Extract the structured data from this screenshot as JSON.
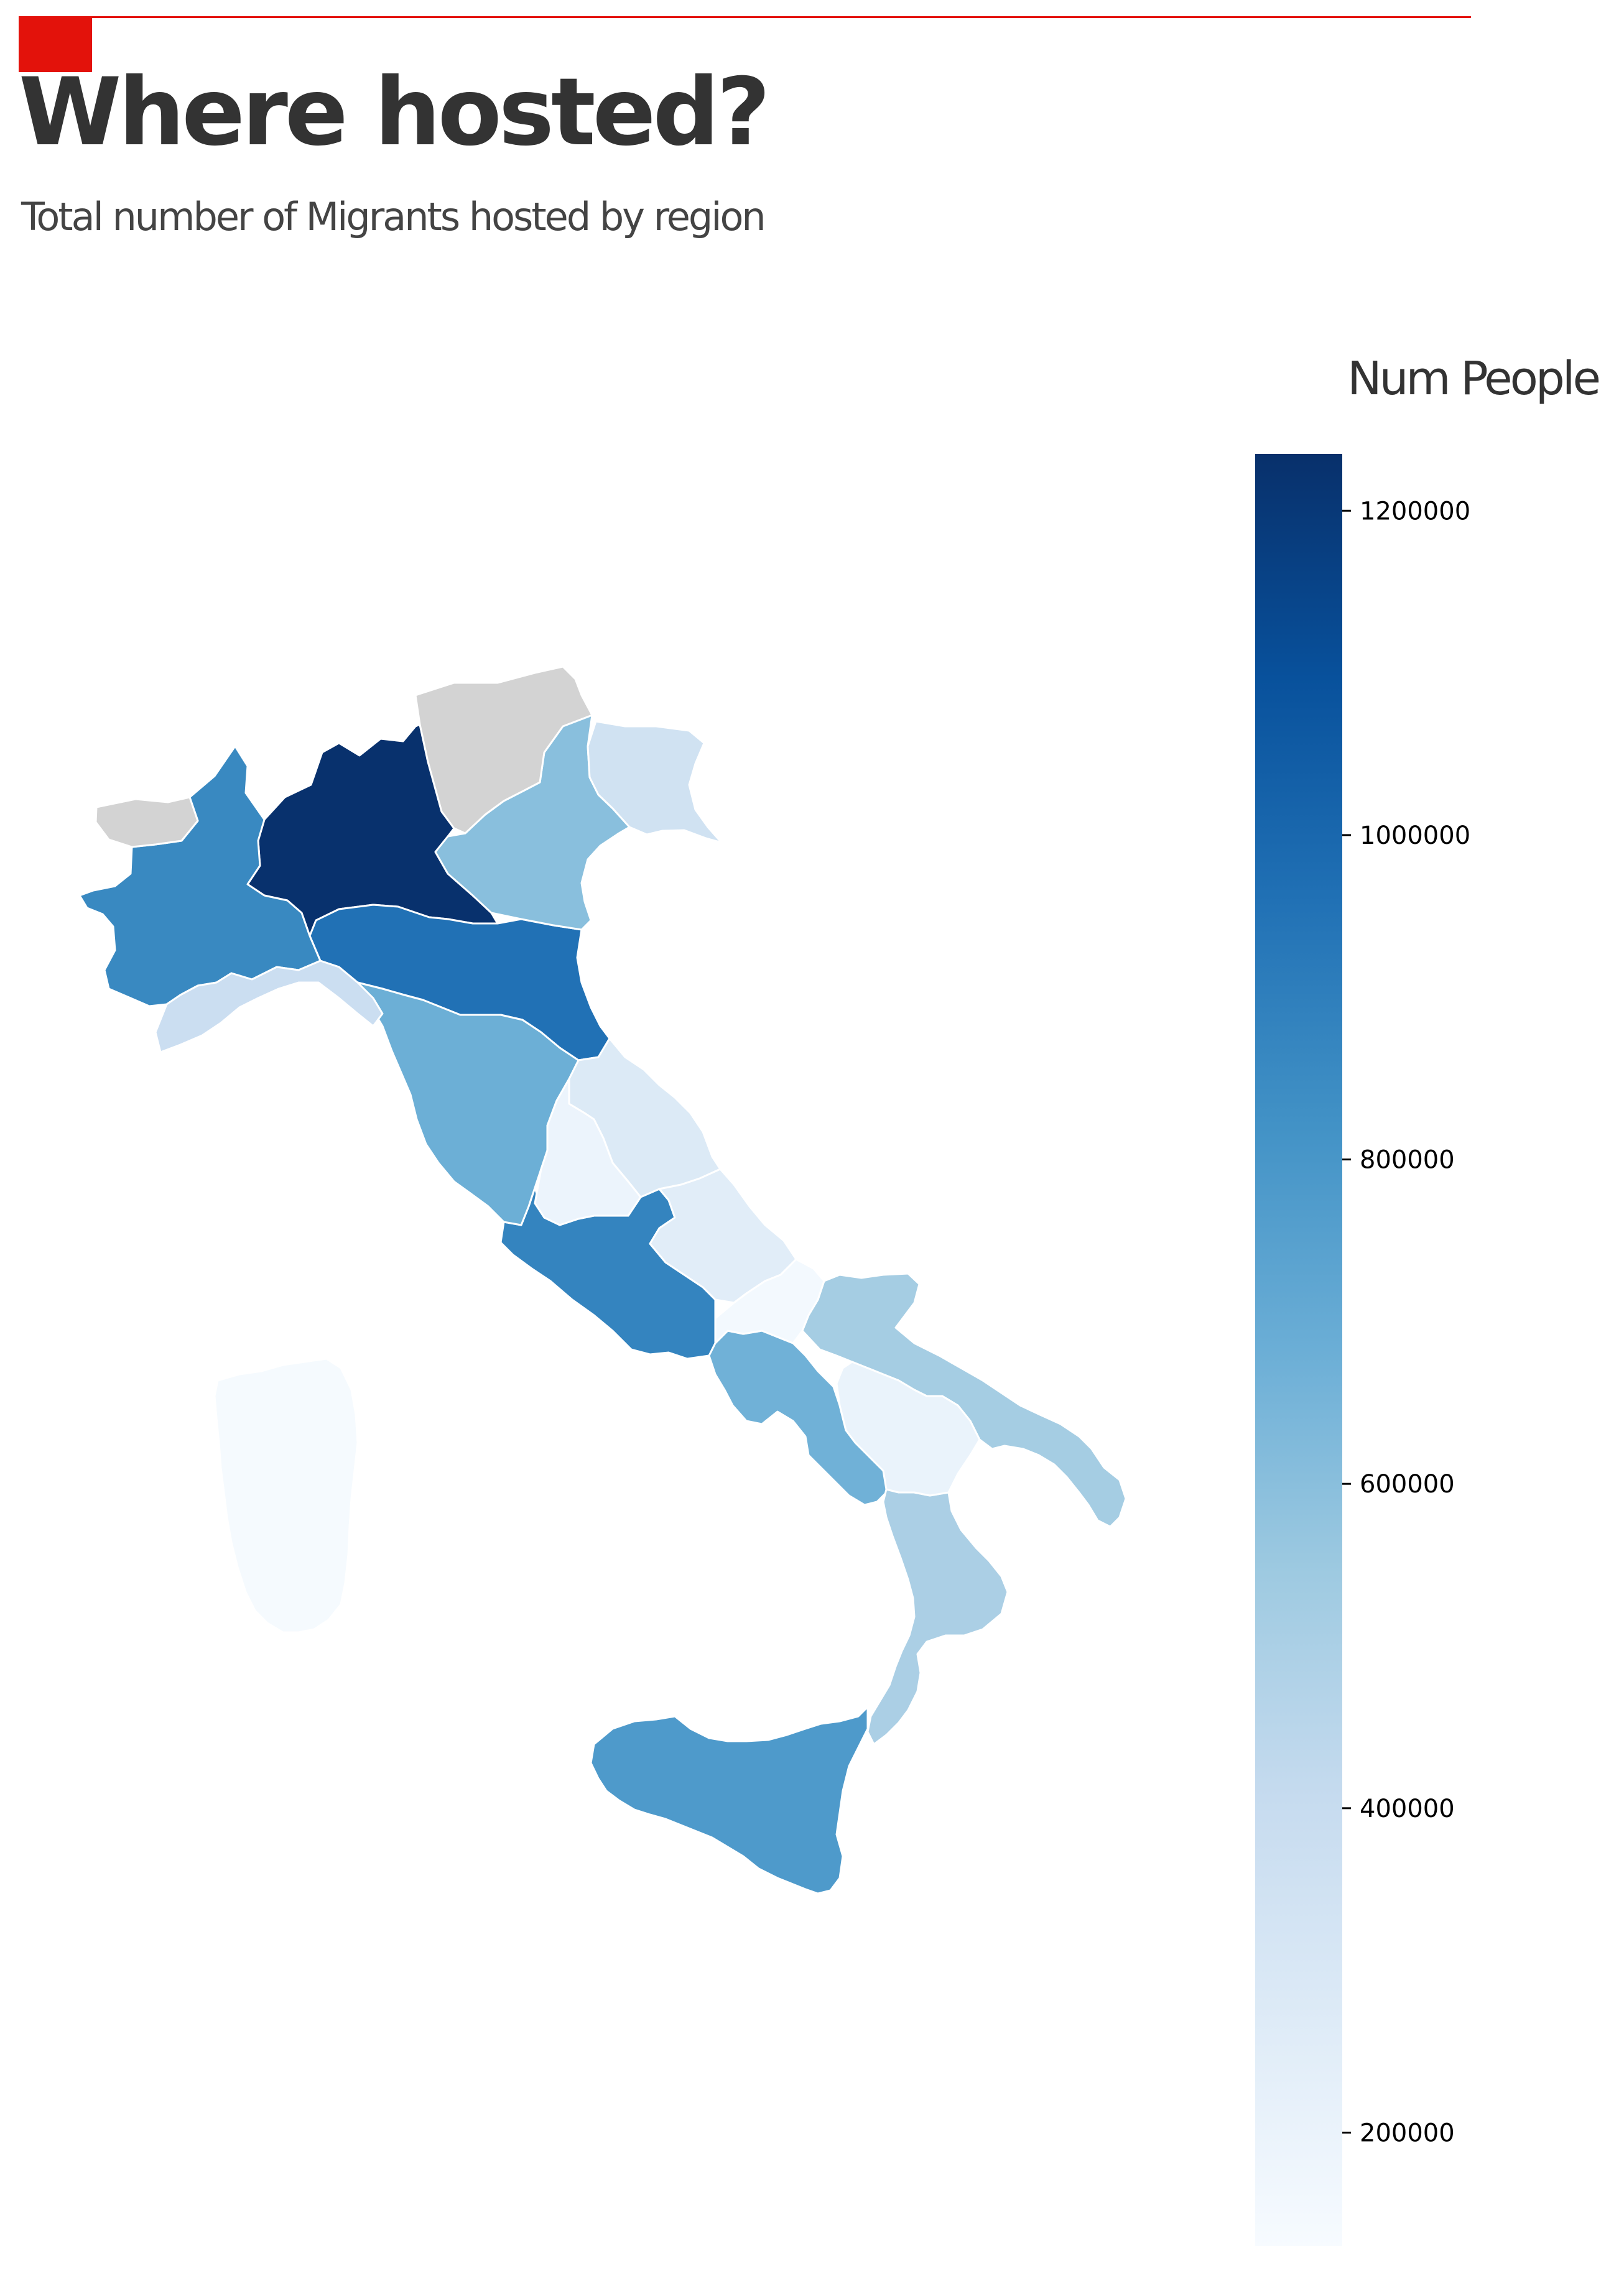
{
  "header": {
    "title": "Where hosted?",
    "subtitle": "Total number of Migrants hosted by region",
    "accent_color": "#e3120b"
  },
  "legend": {
    "title": "Num People",
    "min": 130000,
    "max": 1235000,
    "ticks": [
      1200000,
      1000000,
      800000,
      600000,
      400000,
      200000
    ],
    "colormap": "Blues",
    "stops": [
      "#f7fbff",
      "#deebf7",
      "#c6dbef",
      "#9ecae1",
      "#6baed6",
      "#4292c6",
      "#2171b5",
      "#08519c",
      "#08306b"
    ],
    "no_data_color": "#d3d3d3"
  },
  "chart_data": {
    "type": "choropleth",
    "title": "Where hosted?",
    "subtitle": "Total number of Migrants hosted by region",
    "colorbar_label": "Num People",
    "colorbar_range": [
      130000,
      1235000
    ],
    "regions": [
      {
        "name": "Lombardia",
        "value": 1230000
      },
      {
        "name": "Emilia-Romagna",
        "value": 960000
      },
      {
        "name": "Lazio",
        "value": 880000
      },
      {
        "name": "Piemonte",
        "value": 860000
      },
      {
        "name": "Sicilia",
        "value": 780000
      },
      {
        "name": "Toscana",
        "value": 680000
      },
      {
        "name": "Campania",
        "value": 670000
      },
      {
        "name": "Veneto",
        "value": 600000
      },
      {
        "name": "Puglia",
        "value": 520000
      },
      {
        "name": "Calabria",
        "value": 500000
      },
      {
        "name": "Liguria",
        "value": 380000
      },
      {
        "name": "Friuli-Venezia Giulia",
        "value": 350000
      },
      {
        "name": "Marche",
        "value": 280000
      },
      {
        "name": "Abruzzo",
        "value": 250000
      },
      {
        "name": "Basilicata",
        "value": 200000
      },
      {
        "name": "Umbria",
        "value": 190000
      },
      {
        "name": "Molise",
        "value": 150000
      },
      {
        "name": "Sardegna",
        "value": 140000
      },
      {
        "name": "Valle d'Aosta",
        "value": null
      },
      {
        "name": "Trentino-Alto Adige",
        "value": null
      }
    ]
  }
}
